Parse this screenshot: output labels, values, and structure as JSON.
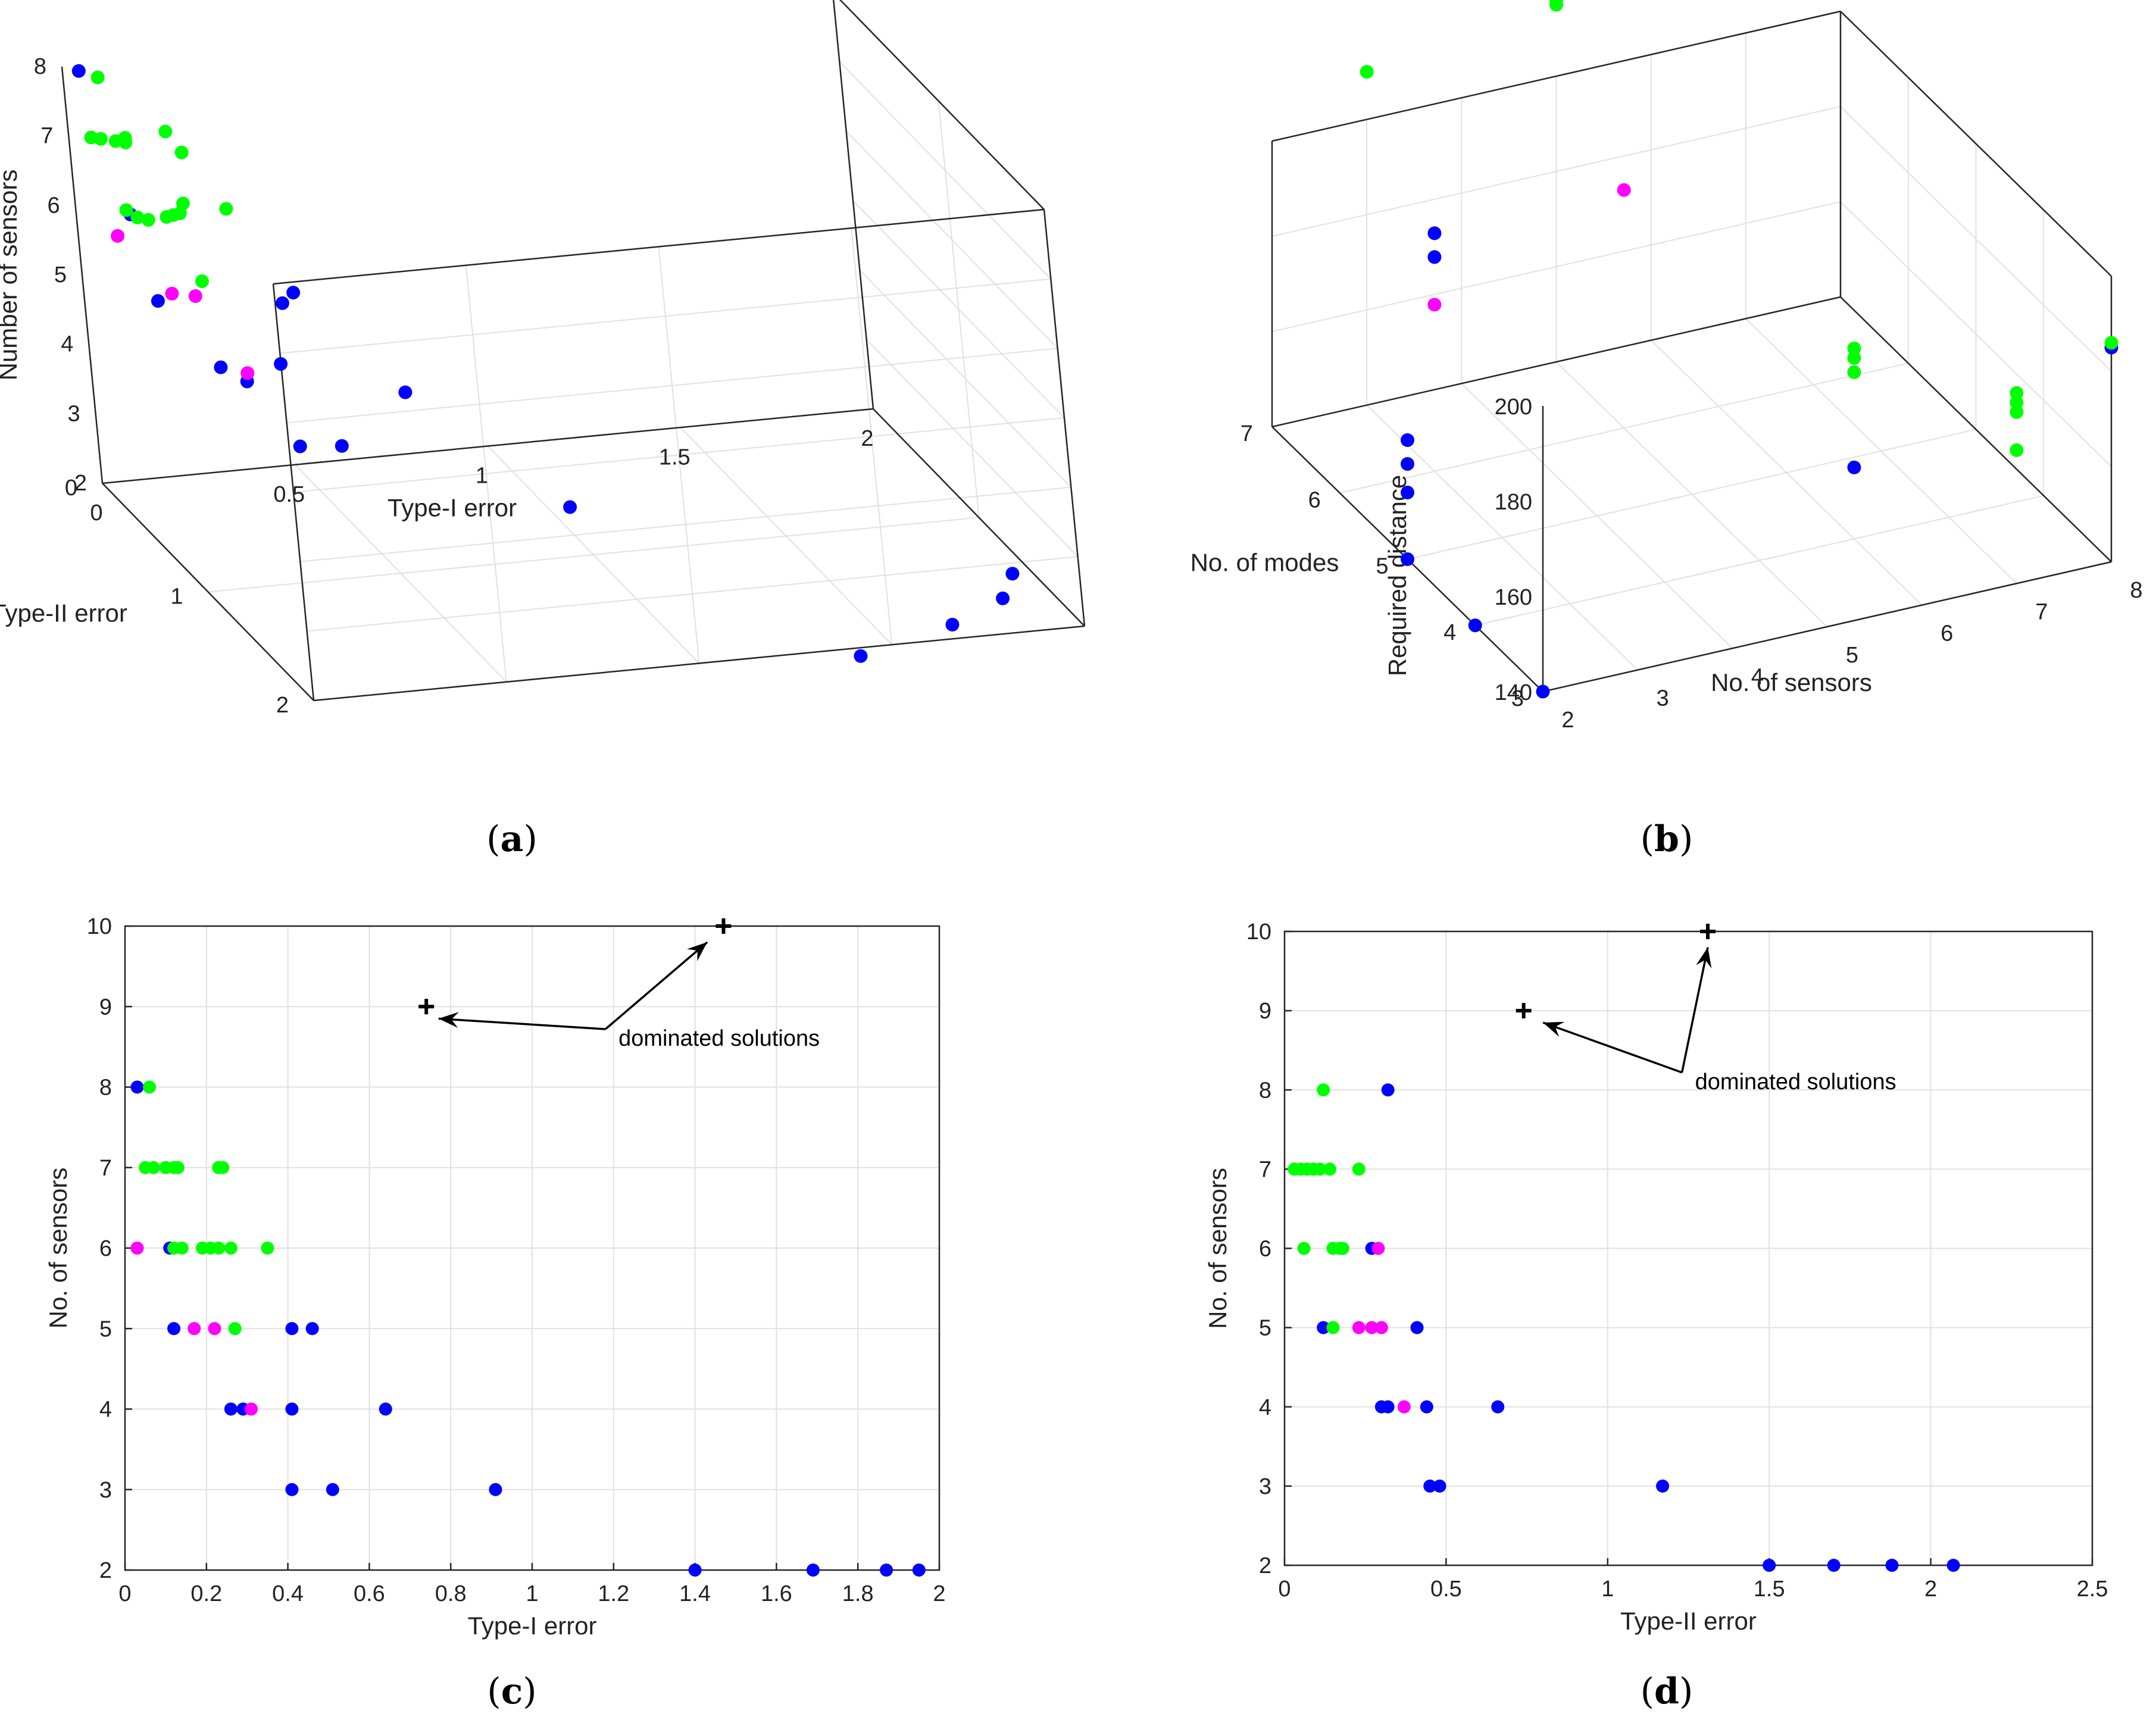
{
  "colors": {
    "blue": "#0000ff",
    "green": "#00ff00",
    "magenta": "#ff00ff",
    "black": "#000000"
  },
  "panels": {
    "a": {
      "open": "(",
      "letter": "a",
      "close": ")"
    },
    "b": {
      "open": "(",
      "letter": "b",
      "close": ")"
    },
    "c": {
      "open": "(",
      "letter": "c",
      "close": ")"
    },
    "d": {
      "open": "(",
      "letter": "d",
      "close": ")"
    }
  },
  "chart_data": [
    {
      "id": "a",
      "type": "scatter3d",
      "xlabel": "Type-I error",
      "ylabel": "Type-II error",
      "zlabel": "Number of sensors",
      "xlim": [
        0,
        2
      ],
      "ylim": [
        0,
        2
      ],
      "zlim": [
        2,
        8
      ],
      "xticks": [
        "0",
        "0.5",
        "1",
        "1.5",
        "2"
      ],
      "yticks": [
        "0",
        "1",
        "2"
      ],
      "zticks": [
        "2",
        "3",
        "4",
        "5",
        "6",
        "7",
        "8"
      ],
      "series": [
        {
          "name": "blue",
          "color": "#0000ff",
          "points": [
            [
              0.03,
              0.05,
              8
            ],
            [
              0.11,
              0.12,
              6
            ],
            [
              0.12,
              0.28,
              5
            ],
            [
              0.41,
              0.4,
              5
            ],
            [
              0.46,
              0.32,
              5
            ],
            [
              0.26,
              0.3,
              4
            ],
            [
              0.29,
              0.44,
              4
            ],
            [
              0.41,
              0.32,
              4
            ],
            [
              0.64,
              0.66,
              4
            ],
            [
              0.41,
              0.44,
              3
            ],
            [
              0.51,
              0.47,
              3
            ],
            [
              0.91,
              1.17,
              3
            ],
            [
              1.4,
              2.07,
              2
            ],
            [
              1.69,
              1.88,
              2
            ],
            [
              1.87,
              1.7,
              2
            ],
            [
              1.95,
              1.5,
              2
            ]
          ]
        },
        {
          "name": "green",
          "color": "#00ff00",
          "points": [
            [
              0.06,
              0.12,
              8
            ],
            [
              0.05,
              0.03,
              7
            ],
            [
              0.07,
              0.05,
              7
            ],
            [
              0.1,
              0.08,
              7
            ],
            [
              0.12,
              0.1,
              7
            ],
            [
              0.13,
              0.06,
              7
            ],
            [
              0.23,
              0.23,
              7
            ],
            [
              0.24,
              0.04,
              7
            ],
            [
              0.11,
              0.08,
              6
            ],
            [
              0.12,
              0.15,
              6
            ],
            [
              0.14,
              0.18,
              6
            ],
            [
              0.19,
              0.17,
              6
            ],
            [
              0.21,
              0.16,
              6
            ],
            [
              0.23,
              0.15,
              6
            ],
            [
              0.26,
              0.07,
              6
            ],
            [
              0.35,
              0.15,
              6
            ],
            [
              0.27,
              0.15,
              5
            ]
          ]
        },
        {
          "name": "magenta",
          "color": "#ff00ff",
          "points": [
            [
              0.03,
              0.29,
              6
            ],
            [
              0.17,
              0.23,
              5
            ],
            [
              0.22,
              0.27,
              5
            ],
            [
              0.31,
              0.37,
              4
            ]
          ]
        }
      ]
    },
    {
      "id": "b",
      "type": "scatter3d",
      "xlabel": "No. of sensors",
      "ylabel": "No. of modes",
      "zlabel": "Required distance",
      "xlim": [
        2,
        8
      ],
      "ylim": [
        3,
        7
      ],
      "zlim": [
        140,
        200
      ],
      "xticks": [
        "2",
        "3",
        "4",
        "5",
        "6",
        "7",
        "8"
      ],
      "yticks": [
        "3",
        "4",
        "5",
        "6",
        "7"
      ],
      "zticks": [
        "140",
        "160",
        "180",
        "200"
      ],
      "series": [
        {
          "name": "blue",
          "color": "#0000ff",
          "points": [
            [
              2,
              3,
              140
            ],
            [
              2,
              4,
              140
            ],
            [
              2,
              5,
              140
            ],
            [
              2,
              5,
              154
            ],
            [
              2,
              5,
              160
            ],
            [
              2,
              5,
              165
            ],
            [
              3,
              6,
              185
            ],
            [
              3,
              6,
              190
            ],
            [
              6,
              4,
              155
            ],
            [
              8,
              3,
              185
            ]
          ]
        },
        {
          "name": "green",
          "color": "#00ff00",
          "points": [
            [
              3,
              7,
              210
            ],
            [
              5,
              7,
              215
            ],
            [
              5,
              7,
              216
            ],
            [
              7,
              3,
              178
            ],
            [
              7,
              3,
              176
            ],
            [
              7,
              3,
              180
            ],
            [
              7,
              3,
              168
            ],
            [
              6,
              4,
              175
            ],
            [
              6,
              4,
              180
            ],
            [
              6,
              4,
              178
            ],
            [
              8,
              3,
              186
            ]
          ]
        },
        {
          "name": "magenta",
          "color": "#ff00ff",
          "points": [
            [
              3,
              6,
              175
            ],
            [
              5,
              6,
              190
            ]
          ]
        }
      ]
    },
    {
      "id": "c",
      "type": "scatter",
      "xlabel": "Type-I error",
      "ylabel": "No. of sensors",
      "xlim": [
        0,
        2
      ],
      "ylim": [
        2,
        10
      ],
      "xticks": [
        0,
        0.2,
        0.4,
        0.6,
        0.8,
        1,
        1.2,
        1.4,
        1.6,
        1.8,
        2
      ],
      "yticks": [
        2,
        3,
        4,
        5,
        6,
        7,
        8,
        9,
        10
      ],
      "grid": true,
      "annotation": {
        "text": "dominated solutions",
        "tail": [
          1.18,
          8.72
        ],
        "targets": [
          [
            0.77,
            8.85
          ],
          [
            1.43,
            9.8
          ]
        ]
      },
      "series": [
        {
          "name": "blue",
          "color": "#0000ff",
          "marker": "dot",
          "points": [
            [
              0.03,
              8
            ],
            [
              0.11,
              6
            ],
            [
              0.12,
              5
            ],
            [
              0.41,
              5
            ],
            [
              0.46,
              5
            ],
            [
              0.26,
              4
            ],
            [
              0.29,
              4
            ],
            [
              0.41,
              4
            ],
            [
              0.64,
              4
            ],
            [
              0.41,
              3
            ],
            [
              0.51,
              3
            ],
            [
              0.91,
              3
            ],
            [
              1.4,
              2
            ],
            [
              1.69,
              2
            ],
            [
              1.87,
              2
            ],
            [
              1.95,
              2
            ]
          ]
        },
        {
          "name": "green",
          "color": "#00ff00",
          "marker": "dot",
          "points": [
            [
              0.06,
              8
            ],
            [
              0.05,
              7
            ],
            [
              0.07,
              7
            ],
            [
              0.1,
              7
            ],
            [
              0.12,
              7
            ],
            [
              0.13,
              7
            ],
            [
              0.23,
              7
            ],
            [
              0.24,
              7
            ],
            [
              0.12,
              6
            ],
            [
              0.14,
              6
            ],
            [
              0.19,
              6
            ],
            [
              0.21,
              6
            ],
            [
              0.23,
              6
            ],
            [
              0.26,
              6
            ],
            [
              0.35,
              6
            ],
            [
              0.27,
              5
            ]
          ]
        },
        {
          "name": "magenta",
          "color": "#ff00ff",
          "marker": "dot",
          "points": [
            [
              0.03,
              6
            ],
            [
              0.17,
              5
            ],
            [
              0.22,
              5
            ],
            [
              0.31,
              4
            ]
          ]
        },
        {
          "name": "dominated",
          "color": "#000000",
          "marker": "plus",
          "points": [
            [
              0.74,
              9
            ],
            [
              1.47,
              10
            ]
          ]
        }
      ]
    },
    {
      "id": "d",
      "type": "scatter",
      "xlabel": "Type-II error",
      "ylabel": "No. of sensors",
      "xlim": [
        0,
        2.5
      ],
      "ylim": [
        2,
        10
      ],
      "xticks": [
        0,
        0.5,
        1,
        1.5,
        2,
        2.5
      ],
      "yticks": [
        2,
        3,
        4,
        5,
        6,
        7,
        8,
        9,
        10
      ],
      "grid": true,
      "annotation": {
        "text": "dominated solutions",
        "tail": [
          1.23,
          8.22
        ],
        "targets": [
          [
            0.8,
            8.85
          ],
          [
            1.31,
            9.8
          ]
        ]
      },
      "series": [
        {
          "name": "blue",
          "color": "#0000ff",
          "marker": "dot",
          "points": [
            [
              0.32,
              8
            ],
            [
              0.27,
              6
            ],
            [
              0.12,
              5
            ],
            [
              0.41,
              5
            ],
            [
              0.3,
              4
            ],
            [
              0.32,
              4
            ],
            [
              0.44,
              4
            ],
            [
              0.66,
              4
            ],
            [
              0.45,
              3
            ],
            [
              0.48,
              3
            ],
            [
              1.17,
              3
            ],
            [
              1.5,
              2
            ],
            [
              1.7,
              2
            ],
            [
              1.88,
              2
            ],
            [
              2.07,
              2
            ]
          ]
        },
        {
          "name": "green",
          "color": "#00ff00",
          "marker": "dot",
          "points": [
            [
              0.12,
              8
            ],
            [
              0.03,
              7
            ],
            [
              0.05,
              7
            ],
            [
              0.07,
              7
            ],
            [
              0.09,
              7
            ],
            [
              0.11,
              7
            ],
            [
              0.14,
              7
            ],
            [
              0.23,
              7
            ],
            [
              0.06,
              6
            ],
            [
              0.15,
              6
            ],
            [
              0.17,
              6
            ],
            [
              0.18,
              6
            ],
            [
              0.15,
              5
            ]
          ]
        },
        {
          "name": "magenta",
          "color": "#ff00ff",
          "marker": "dot",
          "points": [
            [
              0.29,
              6
            ],
            [
              0.23,
              5
            ],
            [
              0.27,
              5
            ],
            [
              0.3,
              5
            ],
            [
              0.37,
              4
            ]
          ]
        },
        {
          "name": "dominated",
          "color": "#000000",
          "marker": "plus",
          "points": [
            [
              0.74,
              9
            ],
            [
              1.31,
              10
            ]
          ]
        }
      ]
    }
  ]
}
